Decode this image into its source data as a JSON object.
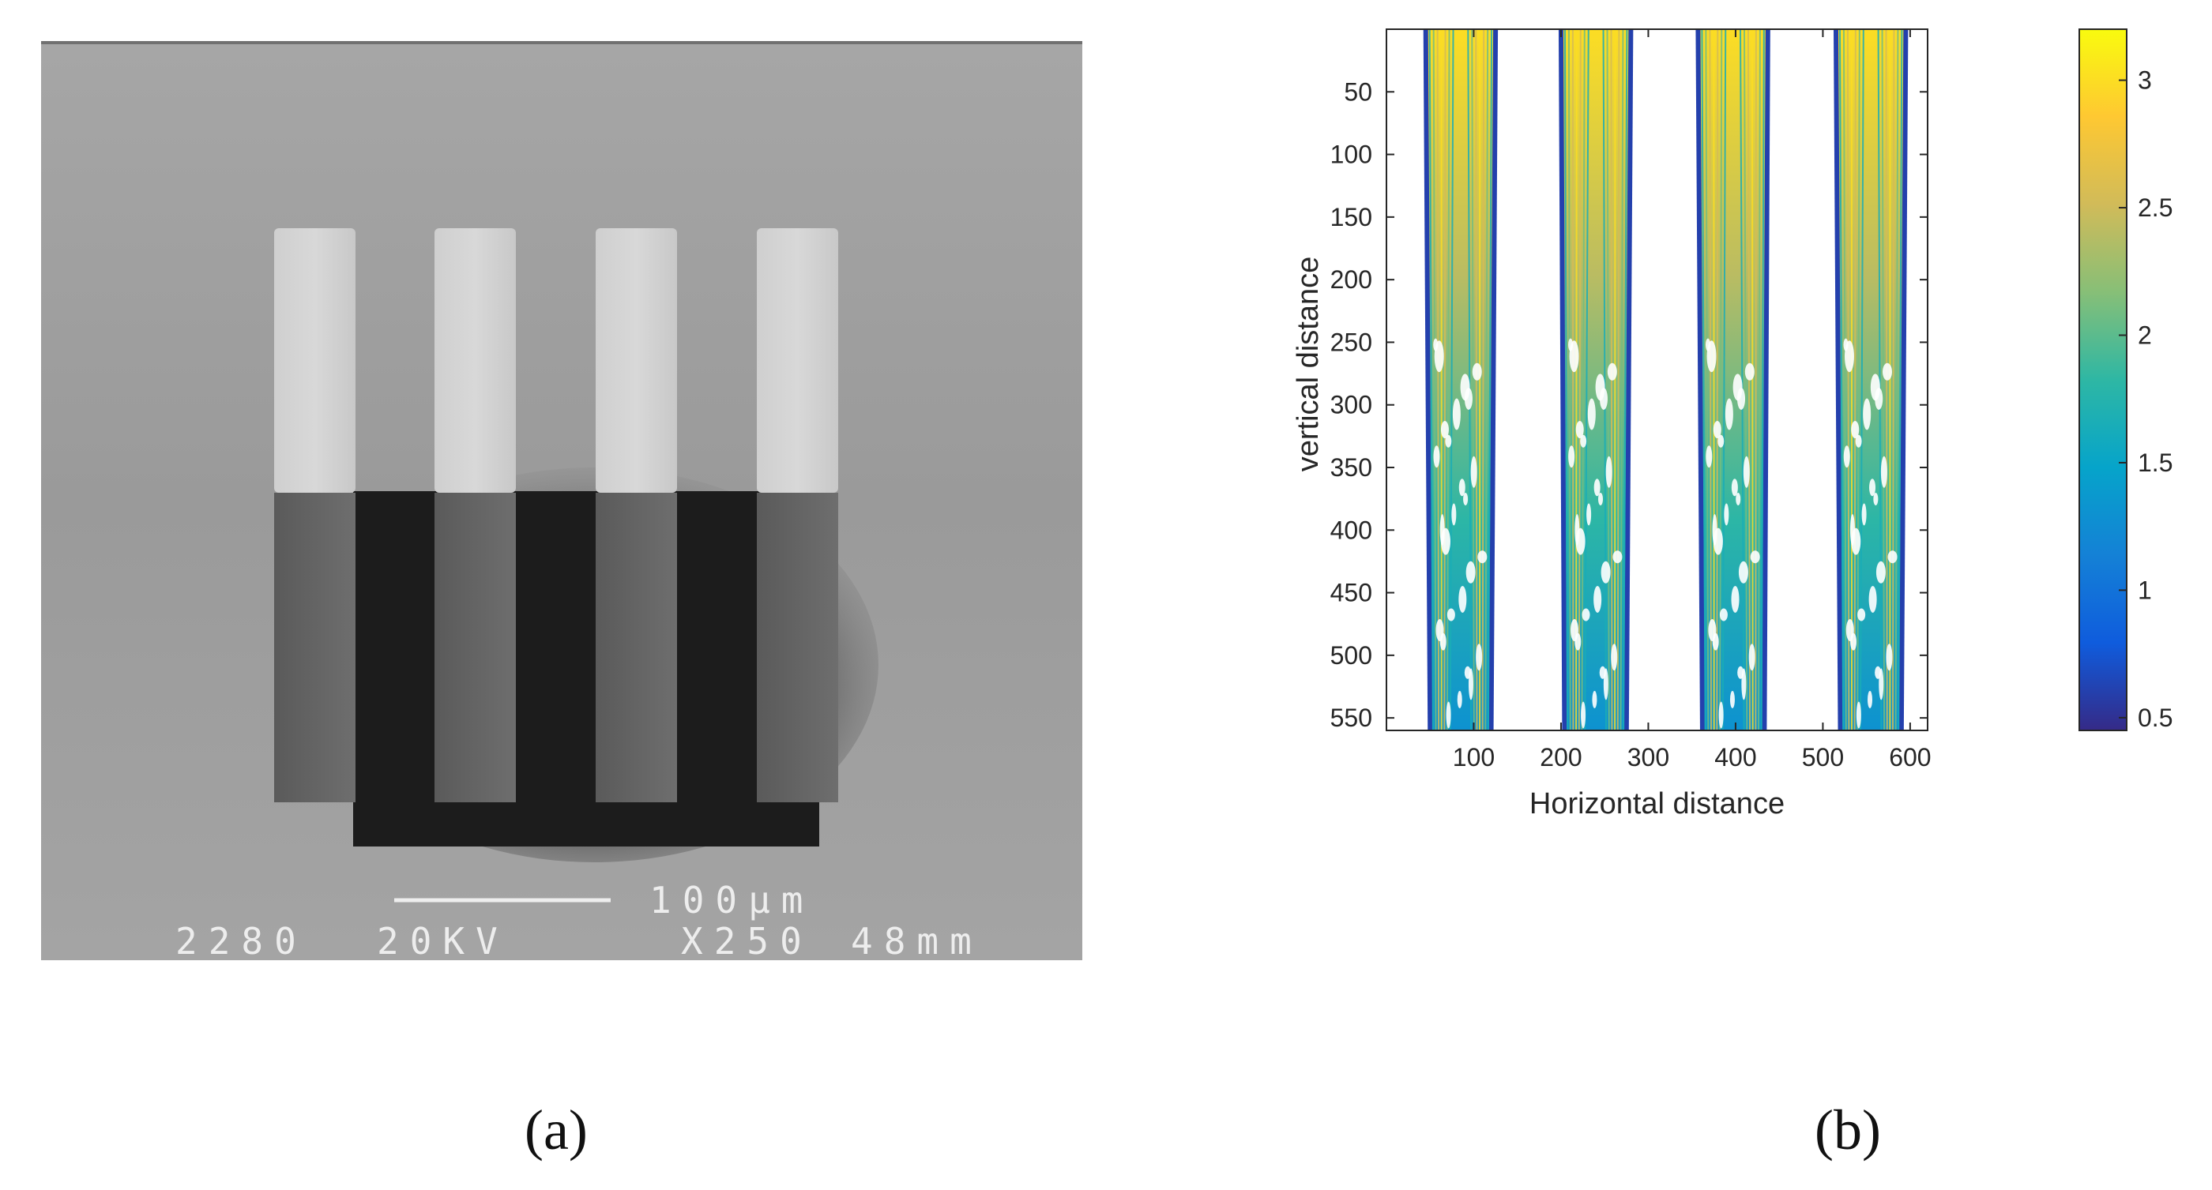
{
  "panel_a": {
    "label": "(a)",
    "scale_bar_label": "100µm",
    "info_line": [
      "2280",
      "20KV",
      "X250",
      "48mm"
    ],
    "pillar_count": 4
  },
  "panel_b": {
    "label": "(b)"
  },
  "chart_data": {
    "type": "heatmap",
    "title": "",
    "xlabel": "Horizontal distance",
    "ylabel": "vertical distance",
    "xlim": [
      0,
      620
    ],
    "ylim": [
      0,
      560
    ],
    "y_reversed": true,
    "xticks": [
      100,
      200,
      300,
      400,
      500,
      600
    ],
    "yticks": [
      50,
      100,
      150,
      200,
      250,
      300,
      350,
      400,
      450,
      500,
      550
    ],
    "colorbar": {
      "range": [
        0.45,
        3.2
      ],
      "ticks": [
        0.5,
        1,
        1.5,
        2,
        2.5,
        3
      ],
      "colormap": "parula",
      "colors": [
        "#352a87",
        "#0f5cdd",
        "#1481d6",
        "#06a4ca",
        "#2eb7a4",
        "#87bf77",
        "#d1bb59",
        "#fec832",
        "#f9fb0e"
      ]
    },
    "bands": [
      {
        "x_left_top": 45,
        "x_right_top": 125,
        "x_left_bottom": 50,
        "x_right_bottom": 120
      },
      {
        "x_left_top": 200,
        "x_right_top": 280,
        "x_left_bottom": 204,
        "x_right_bottom": 275
      },
      {
        "x_left_top": 357,
        "x_right_top": 437,
        "x_left_bottom": 362,
        "x_right_bottom": 433
      },
      {
        "x_left_top": 515,
        "x_right_top": 595,
        "x_left_bottom": 520,
        "x_right_bottom": 590
      }
    ],
    "value_top": 3.0,
    "value_bottom": 1.3,
    "edge_value": 0.6
  }
}
